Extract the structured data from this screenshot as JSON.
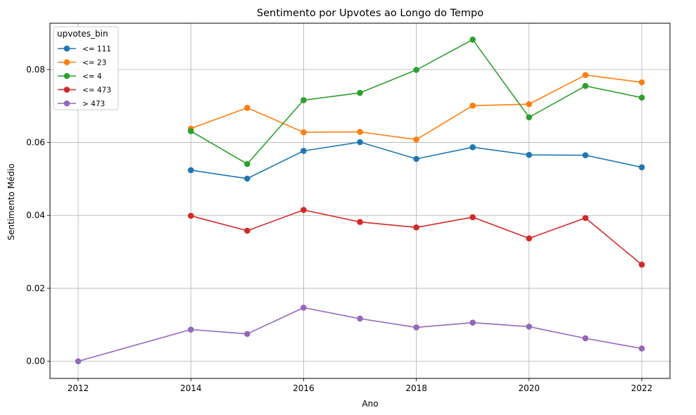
{
  "chart_data": {
    "type": "line",
    "title": "Sentimento por Upvotes ao Longo do Tempo",
    "xlabel": "Ano",
    "ylabel": "Sentimento Médio",
    "xlim": [
      2011.5,
      2022.5
    ],
    "ylim": [
      -0.0047,
      0.0927
    ],
    "x_ticks": [
      2012,
      2014,
      2016,
      2018,
      2020,
      2022
    ],
    "x_tick_labels": [
      "2012",
      "2014",
      "2016",
      "2018",
      "2020",
      "2022"
    ],
    "y_ticks": [
      0.0,
      0.02,
      0.04,
      0.06,
      0.08
    ],
    "y_tick_labels": [
      "0.00",
      "0.02",
      "0.04",
      "0.06",
      "0.08"
    ],
    "grid": true,
    "legend": {
      "title": "upvotes_bin",
      "position": "top-left"
    },
    "series": [
      {
        "name": "<= 111",
        "color": "#1f77b4",
        "x": [
          2014,
          2015,
          2016,
          2017,
          2018,
          2019,
          2020,
          2021,
          2022
        ],
        "values": [
          0.0524,
          0.0501,
          0.0577,
          0.0601,
          0.0555,
          0.0587,
          0.0566,
          0.0565,
          0.0532
        ]
      },
      {
        "name": "<= 23",
        "color": "#ff7f0e",
        "x": [
          2014,
          2015,
          2016,
          2017,
          2018,
          2019,
          2020,
          2021,
          2022
        ],
        "values": [
          0.0638,
          0.0695,
          0.0628,
          0.0629,
          0.0608,
          0.0701,
          0.0705,
          0.0785,
          0.0765
        ]
      },
      {
        "name": "<= 4",
        "color": "#2ca02c",
        "x": [
          2014,
          2015,
          2016,
          2017,
          2018,
          2019,
          2020,
          2021,
          2022
        ],
        "values": [
          0.0631,
          0.0541,
          0.0716,
          0.0736,
          0.0799,
          0.0882,
          0.0669,
          0.0755,
          0.0723
        ]
      },
      {
        "name": "<= 473",
        "color": "#d62728",
        "x": [
          2014,
          2015,
          2016,
          2017,
          2018,
          2019,
          2020,
          2021,
          2022
        ],
        "values": [
          0.0399,
          0.0358,
          0.0415,
          0.0382,
          0.0367,
          0.0395,
          0.0337,
          0.0393,
          0.0265
        ]
      },
      {
        "name": "> 473",
        "color": "#9467bd",
        "x": [
          2012,
          2014,
          2015,
          2016,
          2017,
          2018,
          2019,
          2020,
          2021,
          2022
        ],
        "values": [
          0.0,
          0.0087,
          0.0075,
          0.0147,
          0.0117,
          0.0093,
          0.0106,
          0.0095,
          0.0063,
          0.0035
        ]
      }
    ]
  }
}
